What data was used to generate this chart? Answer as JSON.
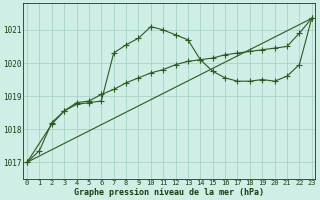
{
  "title": "Graphe pression niveau de la mer (hPa)",
  "xlabel_ticks": [
    0,
    1,
    2,
    3,
    4,
    5,
    6,
    7,
    8,
    9,
    10,
    11,
    12,
    13,
    14,
    15,
    16,
    17,
    18,
    19,
    20,
    21,
    22,
    23
  ],
  "yticks": [
    1017,
    1018,
    1019,
    1020,
    1021
  ],
  "ylim": [
    1016.5,
    1021.8
  ],
  "xlim": [
    -0.3,
    23.3
  ],
  "background_color": "#ceeee6",
  "grid_color": "#aad4c8",
  "line_color": "#2d5a1e",
  "text_color": "#1a3d10",
  "line1_x": [
    0,
    1,
    2,
    3,
    4,
    5,
    6,
    7,
    8,
    9,
    10,
    11,
    12,
    13,
    14,
    15,
    16,
    17,
    18,
    19,
    20,
    21,
    22,
    23
  ],
  "line1_y": [
    1017.0,
    1017.35,
    1018.2,
    1018.55,
    1018.75,
    1018.8,
    1018.85,
    1020.3,
    1020.55,
    1020.75,
    1021.1,
    1021.0,
    1020.85,
    1020.7,
    1020.1,
    1019.75,
    1019.55,
    1019.45,
    1019.45,
    1019.5,
    1019.45,
    1019.6,
    1019.95,
    1021.35
  ],
  "line2_x": [
    0,
    2,
    3,
    4,
    5,
    6,
    7,
    8,
    9,
    10,
    11,
    12,
    13,
    14,
    15,
    16,
    17,
    18,
    19,
    20,
    21,
    22,
    23
  ],
  "line2_y": [
    1017.0,
    1018.15,
    1018.55,
    1018.8,
    1018.85,
    1019.05,
    1019.2,
    1019.4,
    1019.55,
    1019.7,
    1019.8,
    1019.95,
    1020.05,
    1020.1,
    1020.15,
    1020.25,
    1020.3,
    1020.35,
    1020.4,
    1020.45,
    1020.5,
    1020.9,
    1021.35
  ],
  "line3_x": [
    0,
    23
  ],
  "line3_y": [
    1017.0,
    1021.35
  ]
}
